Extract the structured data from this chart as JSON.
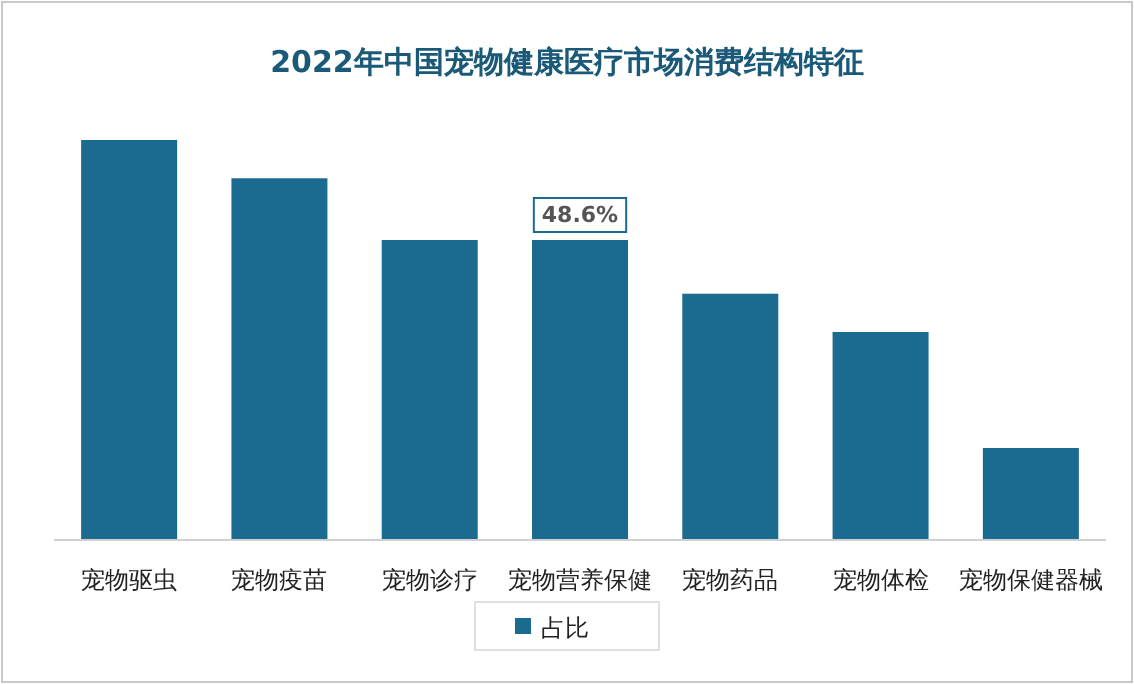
{
  "chart_data": {
    "type": "bar",
    "title": "2022年中国宠物健康医疗市场消费结构特征",
    "categories": [
      "宠物驱虫",
      "宠物疫苗",
      "宠物诊疗",
      "宠物营养保健",
      "宠物药品",
      "宠物体检",
      "宠物保健器械"
    ],
    "legend": "bottom",
    "series": [
      {
        "name": "占比",
        "color": "#1b6a8f",
        "values": [
          64.8,
          58.6,
          48.6,
          48.6,
          39.9,
          33.7,
          14.9
        ],
        "value_labels": [
          null,
          null,
          null,
          "48.6%",
          null,
          null,
          null
        ]
      }
    ]
  }
}
